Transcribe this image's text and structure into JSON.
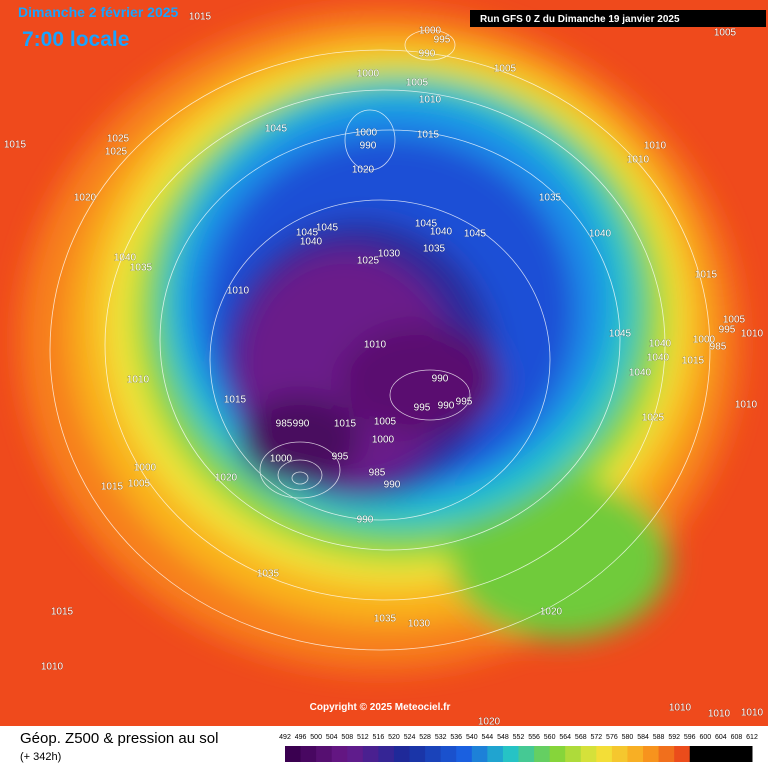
{
  "header": {
    "date": "Dimanche 2 février 2025",
    "time": "7:00 locale",
    "run": "Run GFS 0 Z du Dimanche 19 janvier 2025"
  },
  "map": {
    "pressure_labels": [
      1015,
      1015,
      1025,
      1025,
      1020,
      1045,
      1000,
      995,
      990,
      1000,
      1005,
      1005,
      1005,
      1010,
      1000,
      990,
      1015,
      1020,
      1010,
      1010,
      1035,
      1045,
      1040,
      1045,
      1045,
      1040,
      1045,
      1035,
      1040,
      1030,
      1025,
      1040,
      1035,
      1010,
      1015,
      1010,
      1045,
      1040,
      1040,
      1000,
      985,
      1015,
      1005,
      995,
      1010,
      1010,
      990,
      995,
      990,
      995,
      1040,
      1015,
      985,
      990,
      1015,
      1005,
      1000,
      1010,
      1025,
      995,
      1000,
      985,
      990,
      1020,
      1000,
      1005,
      1015,
      990,
      1035,
      1015,
      1035,
      1030,
      1020,
      1010,
      1010,
      1010,
      1010,
      1020
    ]
  },
  "copyright": "Copyright © 2025 Meteociel.fr",
  "footer": {
    "title": "Géop. Z500 & pression au sol",
    "lead": "(+ 342h)",
    "scale": [
      492,
      496,
      500,
      504,
      508,
      512,
      516,
      520,
      524,
      528,
      532,
      536,
      540,
      544,
      548,
      552,
      556,
      560,
      564,
      568,
      572,
      576,
      580,
      584,
      588,
      592,
      596,
      600,
      604,
      608,
      612
    ]
  }
}
